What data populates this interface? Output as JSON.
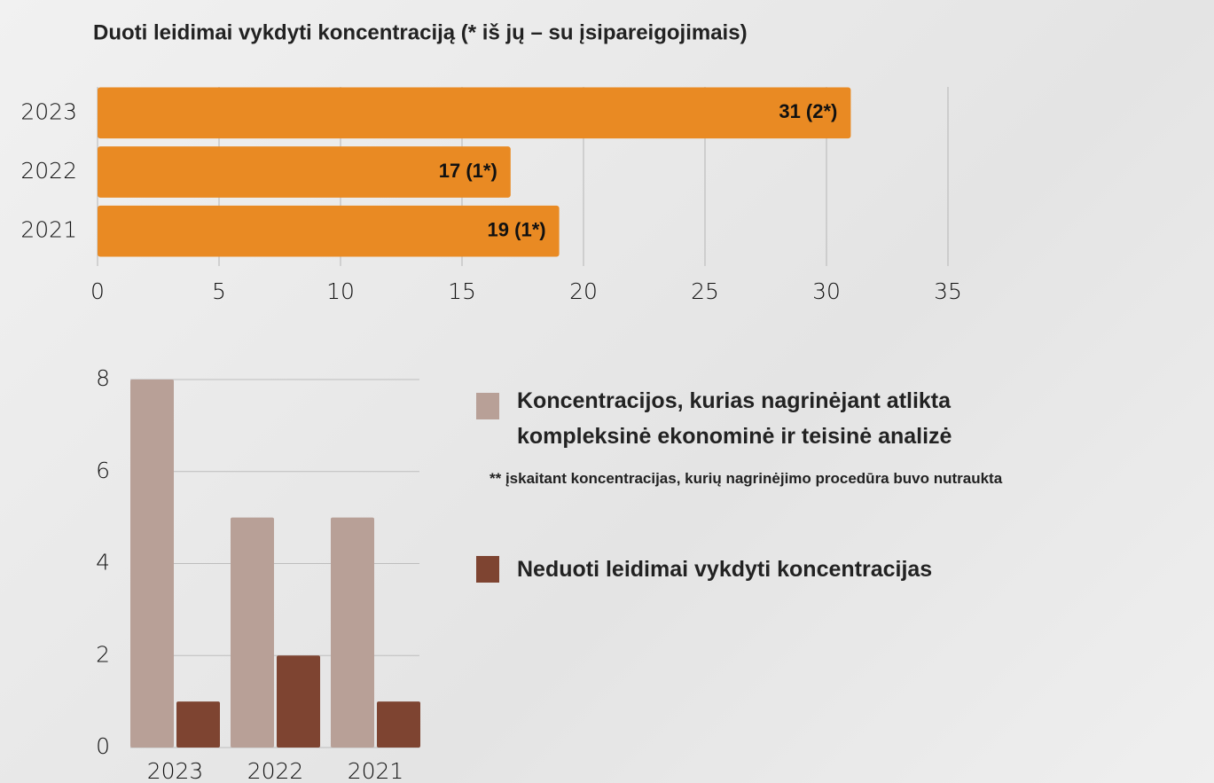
{
  "chart_data": [
    {
      "type": "hbar",
      "title": "Duoti leidimai vykdyti koncentraciją (* iš jų – su įsipareigojimais)",
      "categories": [
        "2023",
        "2022",
        "2021"
      ],
      "values": [
        31,
        17,
        19
      ],
      "value_labels": [
        "31 (2*)",
        "17 (1*)",
        "19 (1*)"
      ],
      "color": "#e98a23",
      "xlim": [
        0,
        35
      ],
      "xticks": [
        0,
        5,
        10,
        15,
        20,
        25,
        30,
        35
      ],
      "grid": true
    },
    {
      "type": "grouped-bar",
      "categories": [
        "2023",
        "2022",
        "2021"
      ],
      "series": [
        {
          "name": "Koncentracijos, kurias nagrinėjant atlikta kompleksinė ekonominė ir teisinė analizė",
          "color": "#b8a097",
          "values": [
            8,
            5,
            5
          ]
        },
        {
          "name": "Neduoti leidimai vykdyti koncentracijas",
          "color": "#7e4431",
          "values": [
            1,
            2,
            1
          ]
        }
      ],
      "annotation": "** įskaitant koncentracijas, kurių nagrinėjimo procedūra buvo nutraukta",
      "ylim": [
        0,
        8
      ],
      "yticks": [
        0,
        2,
        4,
        6,
        8
      ],
      "grid": true
    }
  ]
}
